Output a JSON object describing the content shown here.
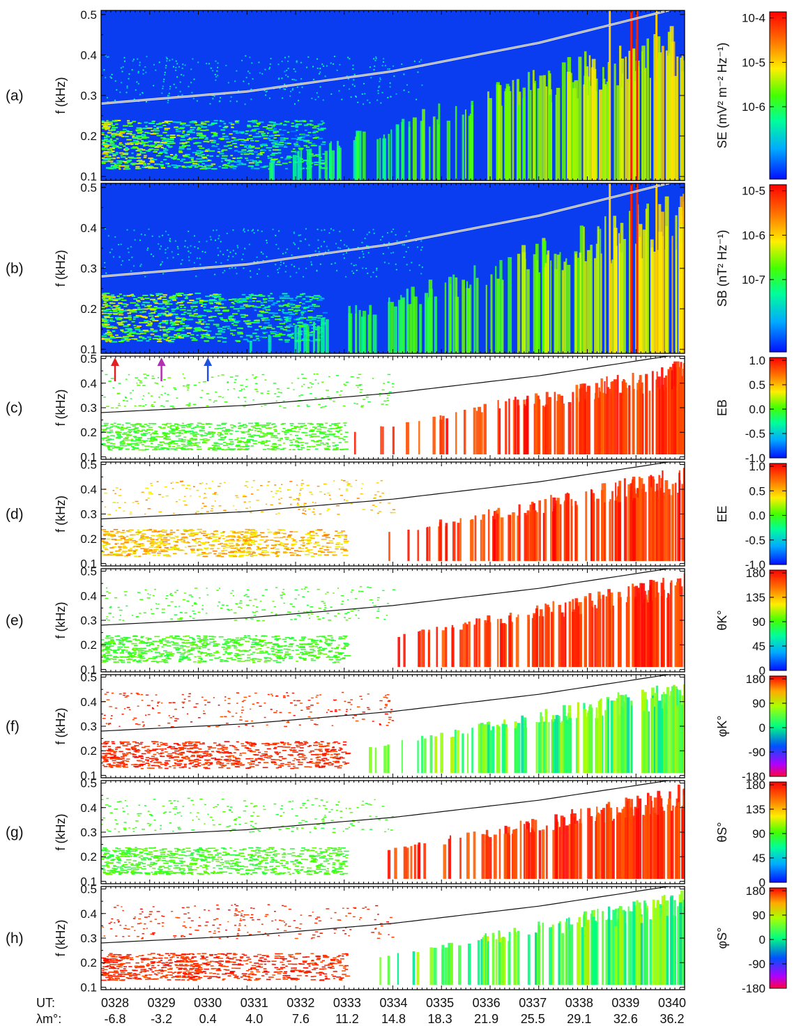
{
  "chart_data": {
    "type": "heatmap",
    "ylabel": "f (kHz)",
    "y_ticks": [
      "0.5",
      "0.4",
      "0.3",
      "0.2",
      "0.1"
    ],
    "ylim": [
      0.09,
      0.51
    ],
    "x_rows": {
      "ut_label": "UT:",
      "lambda_label": "λm°:",
      "ut": [
        "0328",
        "0329",
        "0330",
        "0331",
        "0332",
        "0333",
        "0334",
        "0335",
        "0336",
        "0337",
        "0338",
        "0339",
        "0340"
      ],
      "lambda_m": [
        "-6.8",
        "-3.2",
        "0.4",
        "4.0",
        "7.6",
        "11.2",
        "14.8",
        "18.3",
        "21.9",
        "25.5",
        "29.1",
        "32.6",
        "36.2"
      ]
    },
    "overlay_curve_fraction_of_gyrofrequency": [
      {
        "ut_index": 0,
        "f_kHz": 0.28
      },
      {
        "ut_index": 3,
        "f_kHz": 0.31
      },
      {
        "ut_index": 6,
        "f_kHz": 0.36
      },
      {
        "ut_index": 9,
        "f_kHz": 0.43
      },
      {
        "ut_index": 12,
        "f_kHz": 0.52
      }
    ],
    "arrows": [
      {
        "ut": "0328",
        "color": "#e02020"
      },
      {
        "ut": "0329",
        "color": "#b030b0"
      },
      {
        "ut": "0330",
        "color": "#2050e0"
      }
    ],
    "panels": [
      {
        "id": "a",
        "label": "(a)",
        "kind": "spectral",
        "bg": "#0a3cf0",
        "colorbar": {
          "label": "SE (mV² m⁻² Hz⁻¹)",
          "ticks": [
            "10-4",
            "10-5",
            "10-6"
          ]
        }
      },
      {
        "id": "b",
        "label": "(b)",
        "kind": "spectral",
        "bg": "#0a3cf0",
        "colorbar": {
          "label": "SB (nT² Hz⁻¹)",
          "ticks": [
            "10-5",
            "10-6",
            "10-7"
          ]
        }
      },
      {
        "id": "c",
        "label": "(c)",
        "kind": "sparse",
        "mode": "EB",
        "colorbar": {
          "label": "EB",
          "ticks": [
            "1.0",
            "0.5",
            "0.0",
            "-0.5",
            "-1.0"
          ]
        }
      },
      {
        "id": "d",
        "label": "(d)",
        "kind": "sparse",
        "mode": "EE",
        "colorbar": {
          "label": "EE",
          "ticks": [
            "1.0",
            "0.5",
            "0.0",
            "-0.5",
            "-1.0"
          ]
        }
      },
      {
        "id": "e",
        "label": "(e)",
        "kind": "sparse",
        "mode": "theta",
        "colorbar": {
          "label": "θK°",
          "ticks": [
            "180",
            "135",
            "90",
            "45",
            "0"
          ]
        }
      },
      {
        "id": "f",
        "label": "(f)",
        "kind": "sparse",
        "mode": "phi",
        "colorbar": {
          "label": "φK°",
          "ticks": [
            "180",
            "90",
            "0",
            "-90",
            "-180"
          ]
        }
      },
      {
        "id": "g",
        "label": "(g)",
        "kind": "sparse",
        "mode": "theta",
        "colorbar": {
          "label": "θS°",
          "ticks": [
            "180",
            "135",
            "90",
            "45",
            "0"
          ]
        }
      },
      {
        "id": "h",
        "label": "(h)",
        "kind": "sparse",
        "mode": "phi",
        "colorbar": {
          "label": "φS°",
          "ticks": [
            "180",
            "90",
            "0",
            "-90",
            "-180"
          ]
        }
      }
    ]
  }
}
